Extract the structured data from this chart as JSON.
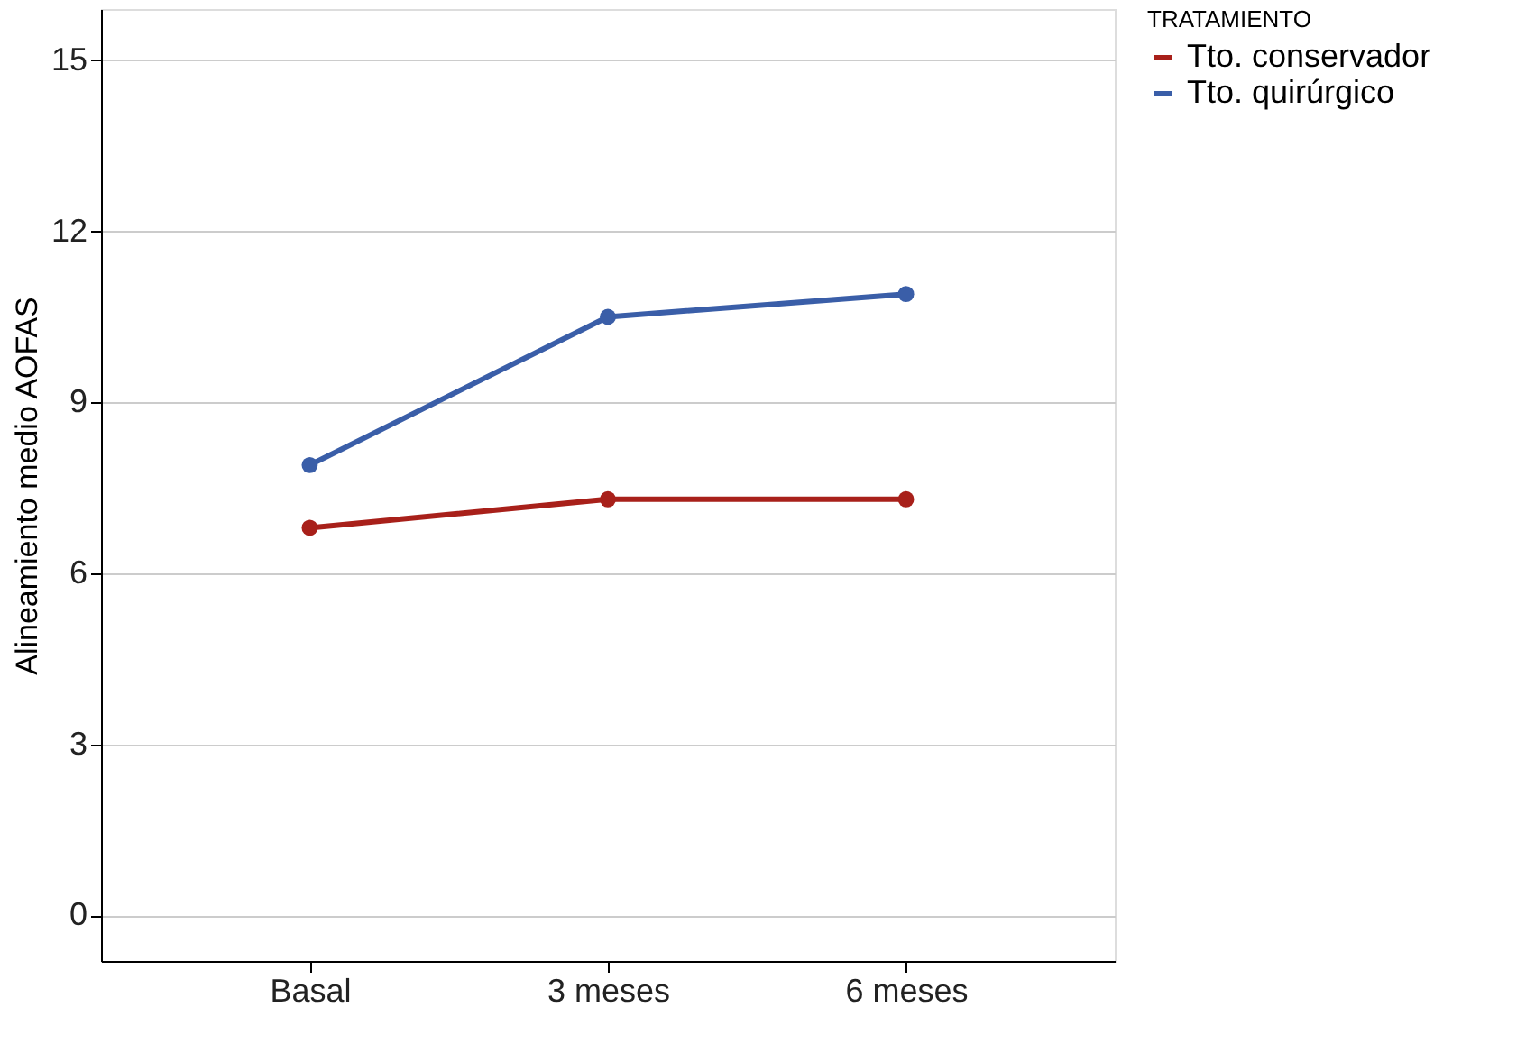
{
  "chart_data": {
    "type": "line",
    "ylabel": "Alineamiento medio AOFAS",
    "legend_title": "TRATAMIENTO",
    "categories": [
      "Basal",
      "3 meses",
      "6 meses"
    ],
    "series": [
      {
        "name": "Tto. conservador",
        "color": "#a8201a",
        "values": [
          6.8,
          7.3,
          7.3
        ]
      },
      {
        "name": "Tto. quirúrgico",
        "color": "#3a5ea8",
        "values": [
          7.9,
          10.5,
          10.9
        ]
      }
    ],
    "ylim": [
      -0.8,
      15.9
    ],
    "yticks": [
      0,
      3,
      6,
      9,
      12,
      15
    ],
    "grid": "y",
    "legend": "top right",
    "marker": "circle",
    "line_style": "solid"
  }
}
